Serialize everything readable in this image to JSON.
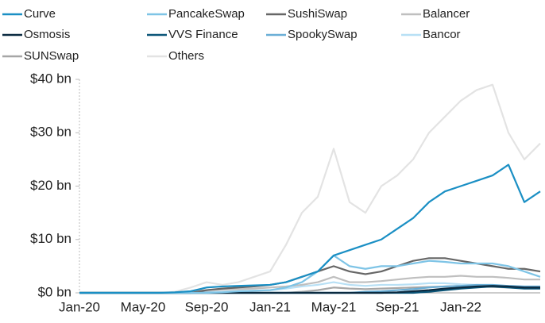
{
  "chart_data": {
    "type": "line",
    "categories": [
      "Jan-20",
      null,
      null,
      null,
      "May-20",
      null,
      null,
      null,
      "Sep-20",
      null,
      null,
      null,
      "Jan-21",
      null,
      null,
      null,
      "May-21",
      null,
      null,
      null,
      "Sep-21",
      null,
      null,
      null,
      "Jan-22",
      null,
      null,
      null,
      null,
      null
    ],
    "series": [
      {
        "name": "Curve",
        "color": "#1a8fc4",
        "values": [
          0,
          0,
          0,
          0,
          0,
          0,
          0.1,
          0.3,
          1,
          1.2,
          1.3,
          1.4,
          1.5,
          2,
          3,
          4,
          7,
          8,
          9,
          10,
          12,
          14,
          17,
          19,
          20,
          21,
          22,
          24,
          17,
          19
        ]
      },
      {
        "name": "PancakeSwap",
        "color": "#7ec4e6",
        "values": [
          0,
          0,
          0,
          0,
          0,
          0,
          0,
          0,
          0,
          0.1,
          0.3,
          0.4,
          0.5,
          1,
          2,
          4,
          7,
          5,
          4.5,
          5,
          5,
          5.5,
          6,
          5.8,
          5.5,
          5.5,
          5.5,
          5,
          4,
          3
        ]
      },
      {
        "name": "SushiSwap",
        "color": "#666666",
        "values": [
          0,
          0,
          0,
          0,
          0,
          0,
          0,
          0,
          0.5,
          0.8,
          1,
          1.2,
          1.5,
          2,
          3,
          4,
          5,
          4,
          3.5,
          4,
          5,
          6,
          6.5,
          6.5,
          6,
          5.5,
          5,
          4.5,
          4.5,
          4
        ]
      },
      {
        "name": "Balancer",
        "color": "#bfbfbf",
        "values": [
          0,
          0,
          0,
          0,
          0,
          0,
          0.1,
          0.3,
          0.5,
          0.6,
          0.7,
          0.8,
          1,
          1.2,
          1.5,
          2,
          3,
          2,
          2,
          2.2,
          2.5,
          2.8,
          3,
          3,
          3.2,
          3,
          3,
          2.8,
          2.5,
          2.5
        ]
      },
      {
        "name": "Osmosis",
        "color": "#0a2a40",
        "values": [
          0,
          0,
          0,
          0,
          0,
          0,
          0,
          0,
          0,
          0,
          0,
          0,
          0,
          0,
          0,
          0,
          0,
          0,
          0,
          0,
          0.1,
          0.3,
          0.5,
          0.8,
          1,
          1.2,
          1.3,
          1.2,
          1,
          1
        ]
      },
      {
        "name": "VVS Finance",
        "color": "#0b5578",
        "values": [
          0,
          0,
          0,
          0,
          0,
          0,
          0,
          0,
          0,
          0,
          0,
          0,
          0,
          0,
          0,
          0,
          0,
          0,
          0,
          0,
          0,
          0,
          0.2,
          0.5,
          0.8,
          1,
          1.2,
          1,
          0.8,
          0.8
        ]
      },
      {
        "name": "SpookySwap",
        "color": "#6aaed6",
        "values": [
          0,
          0,
          0,
          0,
          0,
          0,
          0,
          0,
          0,
          0,
          0,
          0,
          0,
          0,
          0,
          0,
          0,
          0,
          0.2,
          0.3,
          0.5,
          0.7,
          1,
          1.2,
          1.3,
          1.5,
          1.5,
          1.3,
          1.2,
          1.2
        ]
      },
      {
        "name": "Bancor",
        "color": "#b8e0f5",
        "values": [
          0,
          0,
          0,
          0,
          0,
          0,
          0,
          0,
          0.1,
          0.2,
          0.3,
          0.4,
          0.5,
          0.8,
          1.2,
          1.5,
          2,
          1.5,
          1.3,
          1.5,
          1.5,
          1.6,
          1.8,
          1.8,
          1.6,
          1.5,
          1.4,
          1.3,
          1.2,
          1.2
        ]
      },
      {
        "name": "SUNSwap",
        "color": "#a6a6a6",
        "values": [
          0,
          0,
          0,
          0,
          0,
          0,
          0,
          0,
          0,
          0,
          0,
          0,
          0,
          0,
          0.2,
          0.5,
          1,
          0.8,
          0.7,
          0.8,
          0.9,
          1,
          1.1,
          1.2,
          1.3,
          1.2,
          1.1,
          1,
          0.9,
          0.9
        ]
      },
      {
        "name": "Others",
        "color": "#e3e3e3",
        "values": [
          0,
          0,
          0,
          0,
          0,
          0,
          0.2,
          1,
          2,
          1.5,
          2,
          3,
          4,
          9,
          15,
          18,
          27,
          17,
          15,
          20,
          22,
          25,
          30,
          33,
          36,
          38,
          39,
          30,
          25,
          28
        ]
      }
    ],
    "ylim": [
      0,
      40
    ],
    "yticks": [
      {
        "value": 0,
        "label": "$0 bn"
      },
      {
        "value": 10,
        "label": "$10 bn"
      },
      {
        "value": 20,
        "label": "$20 bn"
      },
      {
        "value": 30,
        "label": "$30 bn"
      },
      {
        "value": 40,
        "label": "$40 bn"
      }
    ],
    "legend": "top"
  }
}
